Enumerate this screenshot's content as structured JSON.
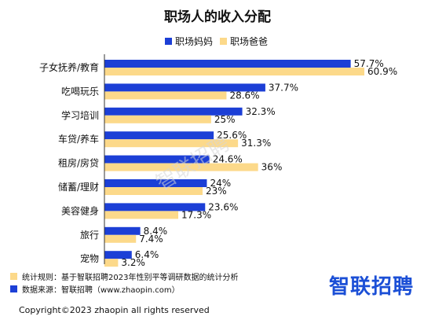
{
  "chart_data": {
    "type": "bar",
    "orientation": "horizontal",
    "title": "职场人的收入分配",
    "categories": [
      "子女抚养/教育",
      "吃喝玩乐",
      "学习培训",
      "车贷/养车",
      "租房/房贷",
      "储蓄/理财",
      "美容健身",
      "旅行",
      "宠物"
    ],
    "series": [
      {
        "name": "职场妈妈",
        "color": "#1c3fd6",
        "values": [
          57.7,
          37.7,
          32.3,
          25.6,
          24.6,
          24,
          23.6,
          8.4,
          6.4
        ],
        "labels": [
          "57.7%",
          "37.7%",
          "32.3%",
          "25.6%",
          "24.6%",
          "24%",
          "23.6%",
          "8.4%",
          "6.4%"
        ]
      },
      {
        "name": "职场爸爸",
        "color": "#fcd98a",
        "values": [
          60.9,
          28.6,
          25,
          31.3,
          36,
          23,
          17.3,
          7.4,
          3.2
        ],
        "labels": [
          "60.9%",
          "28.6%",
          "25%",
          "31.3%",
          "36%",
          "23%",
          "17.3%",
          "7.4%",
          "3.2%"
        ]
      }
    ],
    "xlim": [
      0,
      62
    ],
    "legend": "top-center",
    "grid": false
  },
  "notes": [
    {
      "marker_color": "#fcd98a",
      "text": "统计规则：基于智联招聘2023年性别平等调研数据的统计分析"
    },
    {
      "marker_color": "#1c3fd6",
      "text": "数据来源：智联招聘（www.zhaopin.com）"
    }
  ],
  "logo": {
    "text": "智联招聘",
    "watermark": "智联招聘"
  },
  "copyright": "Copyright©2023 zhaopin all rights reserved"
}
